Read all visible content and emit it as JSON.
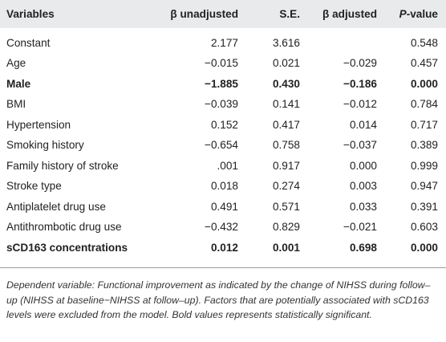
{
  "table": {
    "headers": {
      "variables": "Variables",
      "beta_unadjusted": "β unadjusted",
      "se": "S.E.",
      "beta_adjusted": "β adjusted",
      "p_value_prefix": "P",
      "p_value_suffix": "-value"
    },
    "rows": [
      {
        "variable": "Constant",
        "beta_unadjusted": "2.177",
        "se": "3.616",
        "beta_adjusted": "",
        "p_value": "0.548",
        "bold": false
      },
      {
        "variable": "Age",
        "beta_unadjusted": "−0.015",
        "se": "0.021",
        "beta_adjusted": "−0.029",
        "p_value": "0.457",
        "bold": false
      },
      {
        "variable": "Male",
        "beta_unadjusted": "−1.885",
        "se": "0.430",
        "beta_adjusted": "−0.186",
        "p_value": "0.000",
        "bold": true
      },
      {
        "variable": "BMI",
        "beta_unadjusted": "−0.039",
        "se": "0.141",
        "beta_adjusted": "−0.012",
        "p_value": "0.784",
        "bold": false
      },
      {
        "variable": "Hypertension",
        "beta_unadjusted": "0.152",
        "se": "0.417",
        "beta_adjusted": "0.014",
        "p_value": "0.717",
        "bold": false
      },
      {
        "variable": "Smoking history",
        "beta_unadjusted": "−0.654",
        "se": "0.758",
        "beta_adjusted": "−0.037",
        "p_value": "0.389",
        "bold": false
      },
      {
        "variable": "Family history of stroke",
        "beta_unadjusted": ".001",
        "se": "0.917",
        "beta_adjusted": "0.000",
        "p_value": "0.999",
        "bold": false
      },
      {
        "variable": "Stroke type",
        "beta_unadjusted": "0.018",
        "se": "0.274",
        "beta_adjusted": "0.003",
        "p_value": "0.947",
        "bold": false
      },
      {
        "variable": "Antiplatelet drug use",
        "beta_unadjusted": "0.491",
        "se": "0.571",
        "beta_adjusted": "0.033",
        "p_value": "0.391",
        "bold": false
      },
      {
        "variable": "Antithrombotic drug use",
        "beta_unadjusted": "−0.432",
        "se": "0.829",
        "beta_adjusted": "−0.021",
        "p_value": "0.603",
        "bold": false
      },
      {
        "variable": "sCD163 concentrations",
        "beta_unadjusted": "0.012",
        "se": "0.001",
        "beta_adjusted": "0.698",
        "p_value": "0.000",
        "bold": true
      }
    ]
  },
  "footnote": "Dependent variable: Functional improvement as indicated by the change of NIHSS during follow–up (NIHSS at baseline−NIHSS at follow–up). Factors that are potentially associated with sCD163 levels were excluded from the model. Bold values represents statistically significant.",
  "colors": {
    "header_background": "#e8eaeb",
    "rule": "#9a9a9a",
    "text": "#222222"
  }
}
